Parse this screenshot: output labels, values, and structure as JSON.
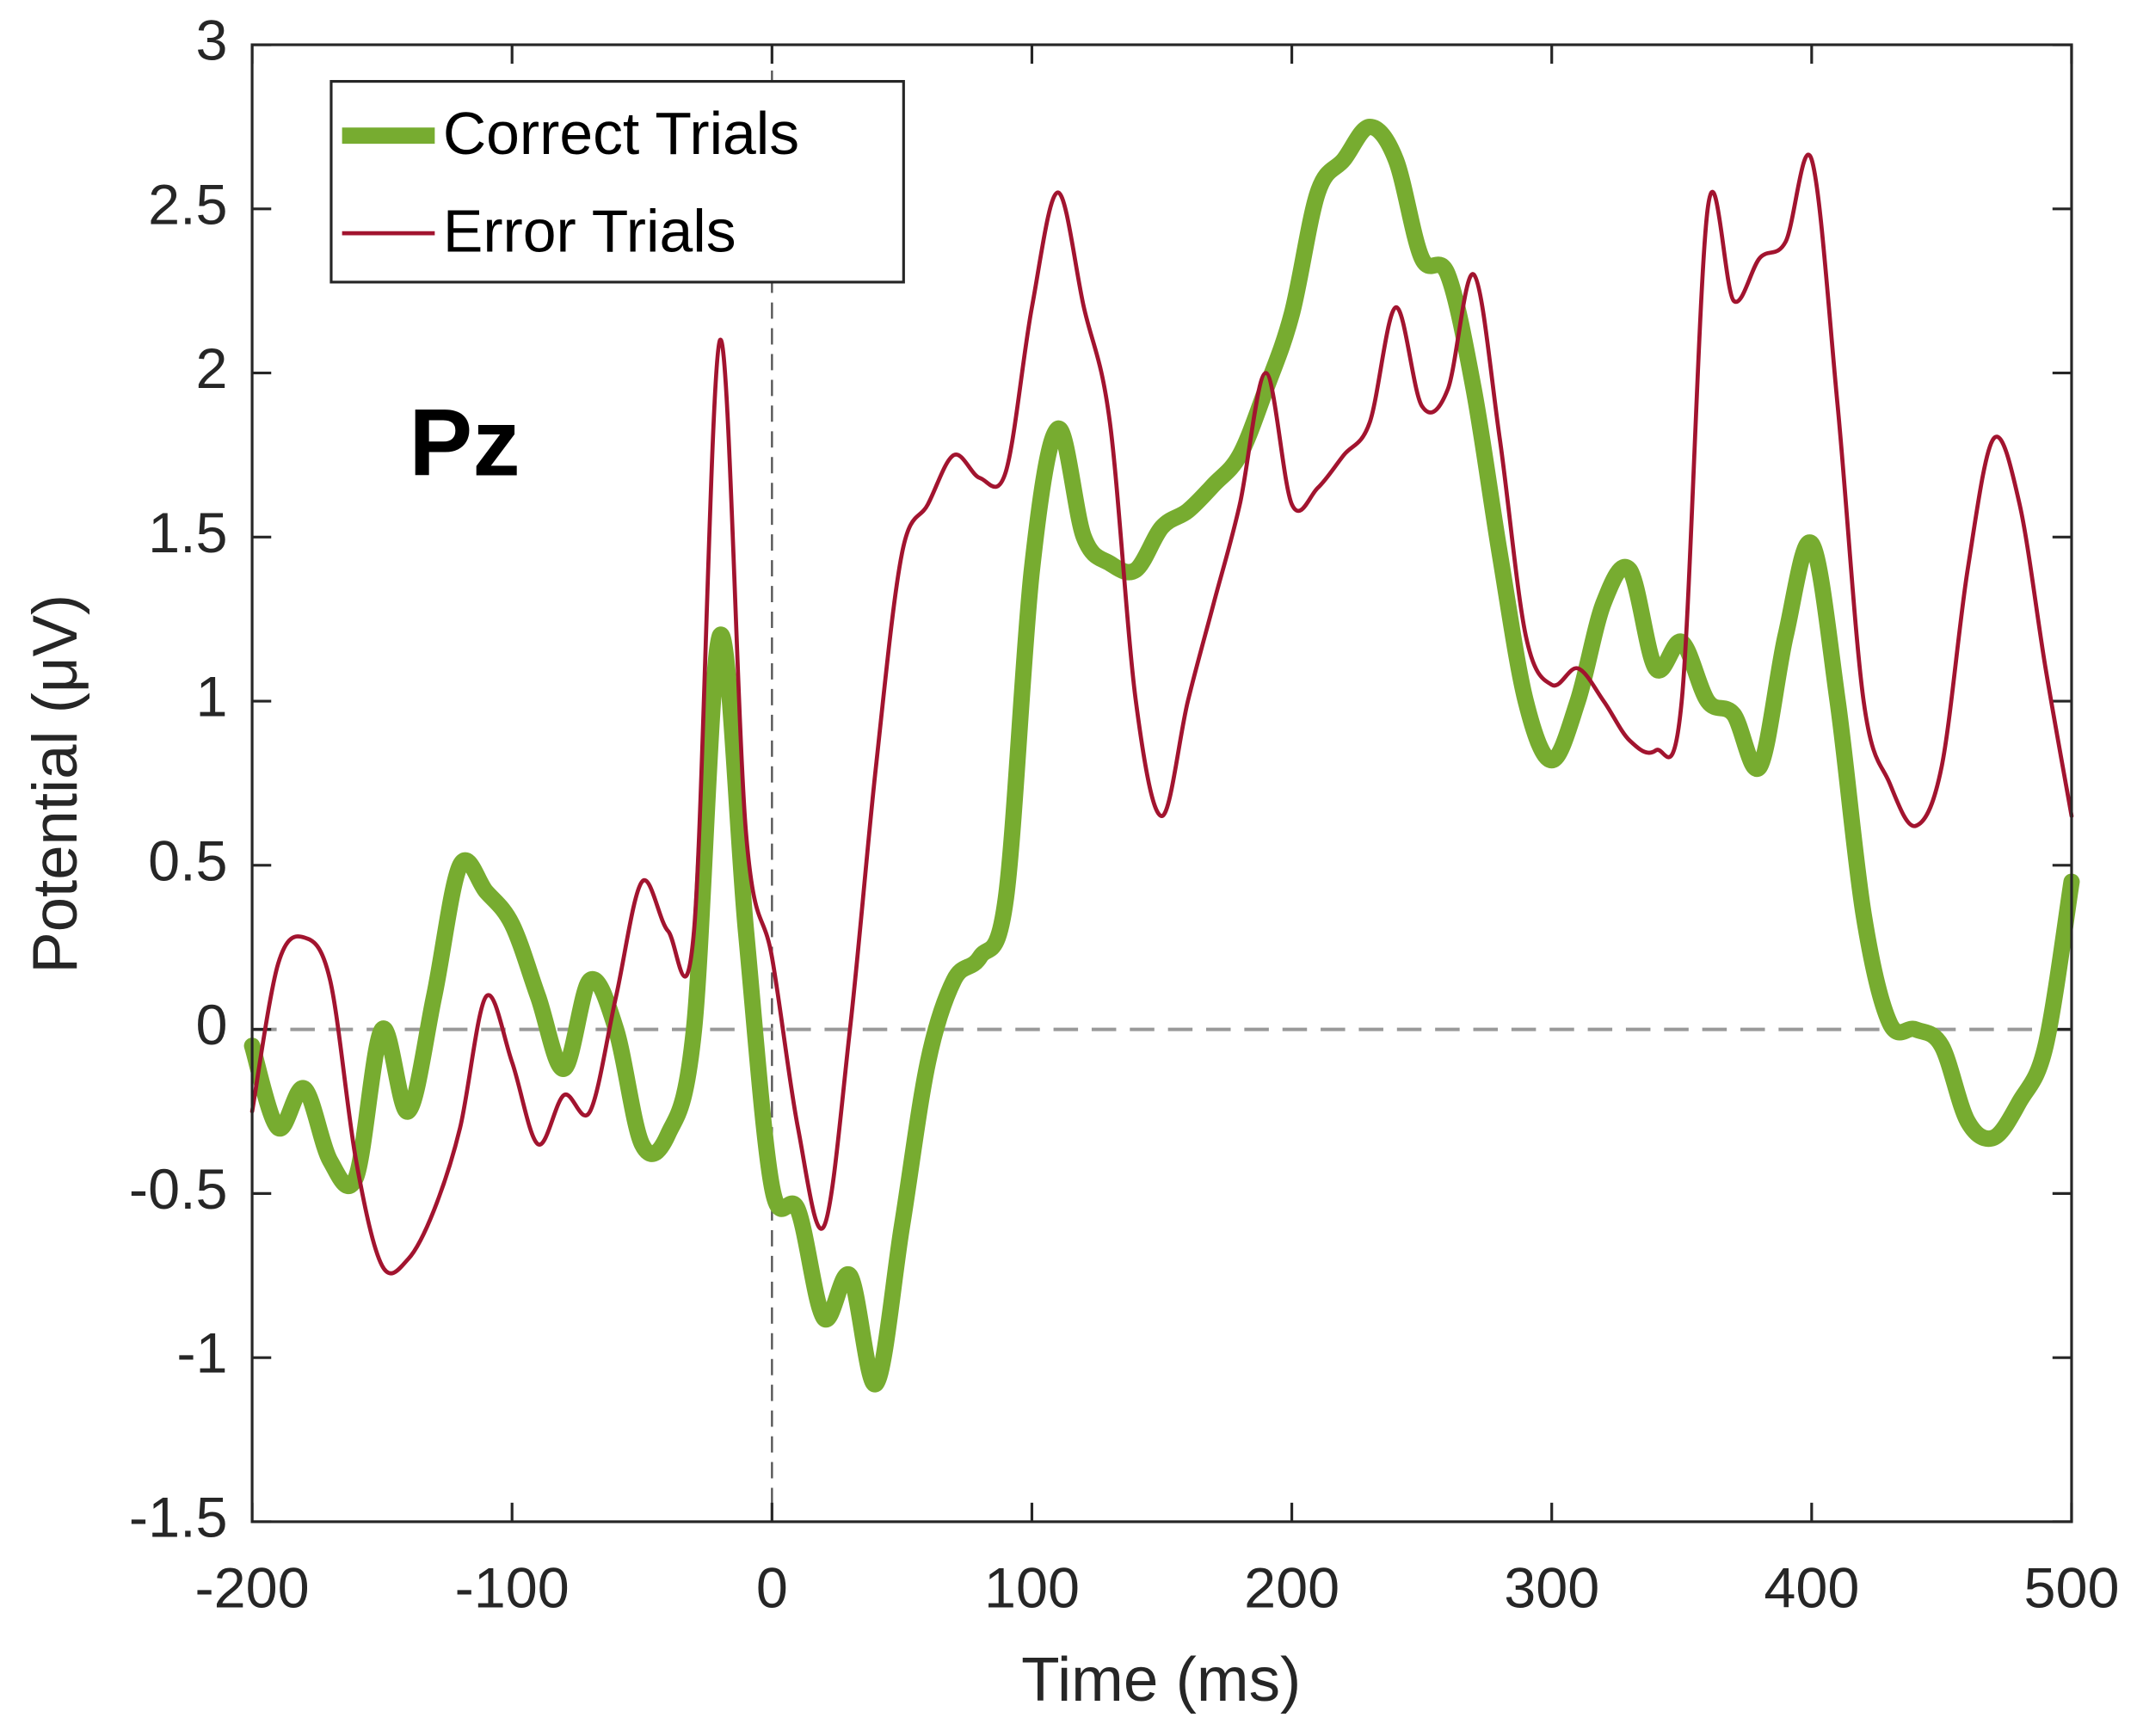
{
  "chart_data": {
    "type": "line",
    "xlabel": "Time (ms)",
    "ylabel": "Potential (μV)",
    "annotation": "Pz",
    "x": [
      -200,
      -190,
      -180,
      -170,
      -160,
      -150,
      -140,
      -130,
      -120,
      -110,
      -100,
      -90,
      -80,
      -70,
      -60,
      -50,
      -40,
      -30,
      -20,
      -10,
      0,
      10,
      20,
      30,
      40,
      50,
      60,
      70,
      80,
      90,
      100,
      110,
      120,
      130,
      140,
      150,
      160,
      170,
      180,
      190,
      200,
      210,
      220,
      230,
      240,
      250,
      260,
      270,
      280,
      290,
      300,
      310,
      320,
      330,
      340,
      350,
      360,
      370,
      380,
      390,
      400,
      410,
      420,
      430,
      440,
      450,
      460,
      470,
      480,
      490,
      500
    ],
    "series": [
      {
        "name": "Correct Trials",
        "color": "#77ac30",
        "width": 12,
        "values": [
          -0.05,
          -0.3,
          -0.18,
          -0.4,
          -0.45,
          0.0,
          -0.25,
          0.1,
          0.5,
          0.42,
          0.32,
          0.1,
          -0.12,
          0.15,
          0.0,
          -0.35,
          -0.32,
          0.0,
          1.2,
          0.3,
          -0.48,
          -0.55,
          -0.88,
          -0.75,
          -1.08,
          -0.6,
          -0.1,
          0.15,
          0.22,
          0.4,
          1.4,
          1.83,
          1.5,
          1.42,
          1.4,
          1.53,
          1.58,
          1.66,
          1.75,
          1.95,
          2.18,
          2.55,
          2.65,
          2.75,
          2.65,
          2.35,
          2.3,
          1.95,
          1.45,
          1.0,
          0.82,
          1.0,
          1.3,
          1.4,
          1.1,
          1.18,
          1.0,
          0.96,
          0.8,
          1.2,
          1.48,
          1.0,
          0.35,
          0.02,
          0.0,
          -0.05,
          -0.28,
          -0.33,
          -0.22,
          -0.05,
          0.45
        ]
      },
      {
        "name": "Error Trials",
        "color": "#a2142f",
        "width": 3,
        "values": [
          -0.25,
          0.2,
          0.28,
          0.15,
          -0.4,
          -0.72,
          -0.7,
          -0.55,
          -0.3,
          0.1,
          -0.1,
          -0.35,
          -0.2,
          -0.25,
          0.1,
          0.45,
          0.3,
          0.3,
          2.1,
          0.6,
          0.22,
          -0.3,
          -0.6,
          0.0,
          0.8,
          1.45,
          1.6,
          1.75,
          1.68,
          1.7,
          2.2,
          2.55,
          2.2,
          1.85,
          1.0,
          0.65,
          1.0,
          1.3,
          1.6,
          2.0,
          1.6,
          1.65,
          1.75,
          1.85,
          2.2,
          1.9,
          1.95,
          2.3,
          1.8,
          1.2,
          1.05,
          1.1,
          1.0,
          0.88,
          0.85,
          1.0,
          2.5,
          2.22,
          2.35,
          2.4,
          2.65,
          1.9,
          1.0,
          0.75,
          0.62,
          0.8,
          1.4,
          1.8,
          1.6,
          1.1,
          0.65
        ]
      }
    ],
    "xlim": [
      -200,
      500
    ],
    "ylim": [
      -1.5,
      3
    ],
    "xticks": [
      -200,
      -100,
      0,
      100,
      200,
      300,
      400,
      500
    ],
    "yticks": [
      -1.5,
      -1,
      -0.5,
      0,
      0.5,
      1,
      1.5,
      2,
      2.5,
      3
    ],
    "reference_lines": {
      "x": 0,
      "y": 0
    },
    "grid": false,
    "legend": "upper left"
  }
}
